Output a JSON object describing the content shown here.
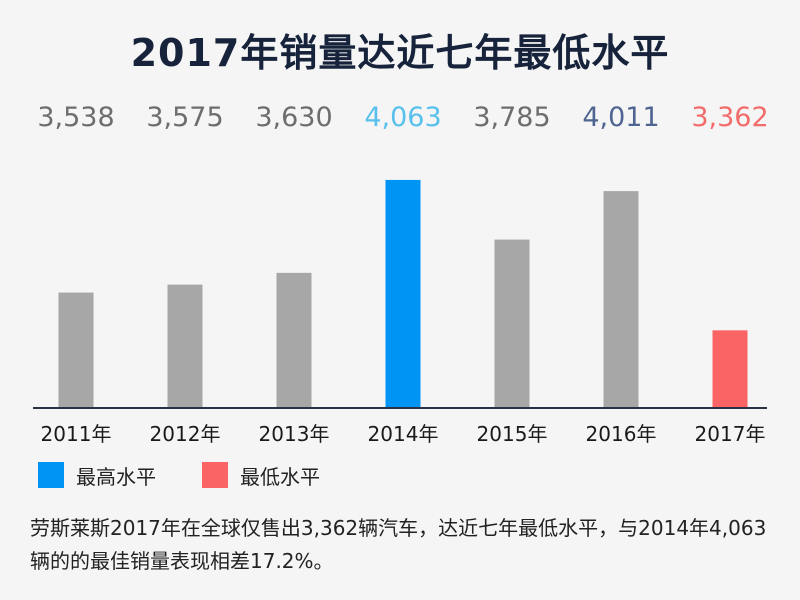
{
  "title": "2017年销量达近七年最低水平",
  "chart_data": {
    "type": "bar",
    "categories": [
      "2011年",
      "2012年",
      "2013年",
      "2014年",
      "2015年",
      "2016年",
      "2017年"
    ],
    "values": [
      3538,
      3575,
      3630,
      4063,
      3785,
      4011,
      3362
    ],
    "value_labels": [
      "3,538",
      "3,575",
      "3,630",
      "4,063",
      "3,785",
      "4,011",
      "3,362"
    ],
    "bar_colors": [
      "#a7a7a7",
      "#a7a7a7",
      "#a7a7a7",
      "#0095f5",
      "#a7a7a7",
      "#a7a7a7",
      "#fa6464"
    ],
    "label_colors": [
      "#6d6d6d",
      "#6d6d6d",
      "#6d6d6d",
      "#58c0ec",
      "#6d6d6d",
      "#4f6591",
      "#f26c6c"
    ],
    "ylim": [
      3000,
      4100
    ],
    "grid": false,
    "legend": [
      {
        "name": "最高水平",
        "color": "#0095f5"
      },
      {
        "name": "最低水平",
        "color": "#fa6464"
      }
    ],
    "legend_position": "bottom-left"
  },
  "note": "劳斯莱斯2017年在全球仅售出3,362辆汽车，达近七年最低水平，与2014年4,063辆的的最佳销量表现相差17.2%。"
}
